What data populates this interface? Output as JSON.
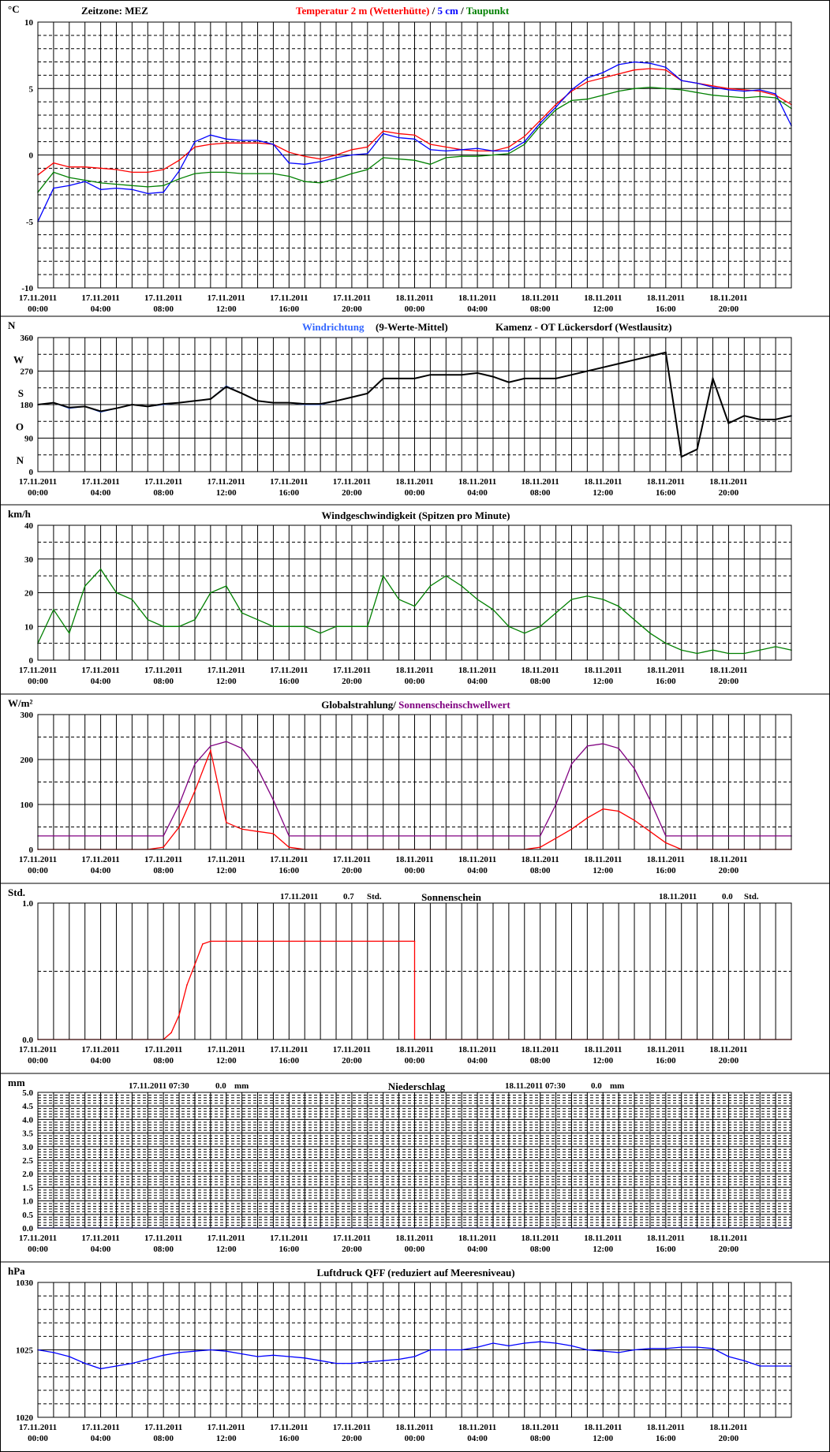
{
  "x_tick_dates": [
    "17.11.2011",
    "17.11.2011",
    "17.11.2011",
    "17.11.2011",
    "17.11.2011",
    "17.11.2011",
    "18.11.2011",
    "18.11.2011",
    "18.11.2011",
    "18.11.2011",
    "18.11.2011",
    "18.11.2011"
  ],
  "x_tick_times": [
    "00:00",
    "04:00",
    "08:00",
    "12:00",
    "16:00",
    "20:00",
    "00:00",
    "04:00",
    "08:00",
    "12:00",
    "16:00",
    "20:00"
  ],
  "panels": {
    "temperature": {
      "unit": "°C",
      "zone": "Zeitzone: MEZ",
      "title_parts": [
        {
          "text": "Temperatur 2 m (Wetterhütte)",
          "color": "#ff0000"
        },
        {
          "text": " / ",
          "color": "#000000"
        },
        {
          "text": "5 cm",
          "color": "#0000ff"
        },
        {
          "text": " / ",
          "color": "#000000"
        },
        {
          "text": "Taupunkt",
          "color": "#008000"
        }
      ],
      "y_ticks": [
        "10",
        "5",
        "0",
        "-5",
        "-10"
      ]
    },
    "wind_direction": {
      "unit": "N",
      "title_left": "Windrichtung",
      "title_left_color": "#3366ff",
      "title_mid": "(9-Werte-Mittel)",
      "title_right": "Kamenz - OT Lückersdorf (Westlausitz)",
      "y_ticks": [
        "360",
        "270",
        "180",
        "90",
        "0"
      ],
      "compass": [
        "N",
        "W",
        "S",
        "O",
        "N"
      ]
    },
    "wind_speed": {
      "unit": "km/h",
      "title": "Windgeschwindigkeit (Spitzen pro Minute)",
      "y_ticks": [
        "40",
        "30",
        "20",
        "10",
        "0"
      ]
    },
    "radiation": {
      "unit": "W/m²",
      "title_parts": [
        {
          "text": "Globalstrahlung/ ",
          "color": "#000000"
        },
        {
          "text": "Sonnenscheinschwellwert",
          "color": "#800080"
        }
      ],
      "y_ticks": [
        "300",
        "200",
        "100",
        "0"
      ]
    },
    "sunshine": {
      "unit": "Std.",
      "title": "Sonnenschein",
      "day1_date": "17.11.2011",
      "day1_value": "0.7",
      "day1_unit": "Std.",
      "day2_date": "18.11.2011",
      "day2_value": "0.0",
      "day2_unit": "Std.",
      "y_ticks": [
        "1.0",
        "0.0"
      ]
    },
    "precipitation": {
      "unit": "mm",
      "title": "Niederschlag",
      "day1_date": "17.11.2011 07:30",
      "day1_value": "0.0",
      "day1_unit": "mm",
      "day2_date": "18.11.2011 07:30",
      "day2_value": "0.0",
      "day2_unit": "mm",
      "y_ticks": [
        "5.0",
        "4.5",
        "4.0",
        "3.5",
        "3.0",
        "2.5",
        "2.0",
        "1.5",
        "1.0",
        "0.5",
        "0.0"
      ]
    },
    "pressure": {
      "unit": "hPa",
      "title": "Luftdruck QFF (reduziert auf Meeresniveau)",
      "y_ticks": [
        "1030",
        "1025",
        "1020"
      ]
    }
  },
  "chart_data": [
    {
      "type": "line",
      "xlabel": "",
      "ylabel": "°C",
      "ylim": [
        -10,
        10
      ],
      "x_hours": [
        0,
        1,
        2,
        3,
        4,
        5,
        6,
        7,
        8,
        9,
        10,
        11,
        12,
        13,
        14,
        15,
        16,
        17,
        18,
        19,
        20,
        21,
        22,
        23,
        24,
        25,
        26,
        27,
        28,
        29,
        30,
        31,
        32,
        33,
        34,
        35,
        36,
        37,
        38,
        39,
        40,
        41,
        42,
        43,
        44,
        45,
        46,
        47,
        48
      ],
      "series": [
        {
          "name": "Temperatur 2 m (Wetterhütte)",
          "color": "#ff0000",
          "values": [
            -1.5,
            -0.6,
            -0.9,
            -0.9,
            -1.0,
            -1.1,
            -1.3,
            -1.3,
            -1.1,
            -0.4,
            0.6,
            0.8,
            0.9,
            0.9,
            0.9,
            0.8,
            0.2,
            -0.1,
            -0.3,
            0.0,
            0.4,
            0.6,
            1.8,
            1.6,
            1.5,
            0.8,
            0.6,
            0.4,
            0.3,
            0.3,
            0.6,
            1.4,
            2.6,
            3.8,
            4.8,
            5.5,
            5.8,
            6.1,
            6.4,
            6.5,
            6.4,
            5.6,
            5.4,
            5.2,
            5.0,
            4.9,
            4.8,
            4.5,
            3.8
          ]
        },
        {
          "name": "5 cm",
          "color": "#0000ff",
          "values": [
            -5.0,
            -2.5,
            -2.3,
            -2.0,
            -2.6,
            -2.5,
            -2.6,
            -2.9,
            -2.8,
            -1.2,
            1.0,
            1.5,
            1.2,
            1.1,
            1.1,
            0.8,
            -0.6,
            -0.7,
            -0.5,
            -0.2,
            0.0,
            0.1,
            1.6,
            1.3,
            1.2,
            0.4,
            0.3,
            0.4,
            0.5,
            0.3,
            0.3,
            1.0,
            2.4,
            3.6,
            4.9,
            5.8,
            6.2,
            6.8,
            7.0,
            6.9,
            6.6,
            5.6,
            5.4,
            5.1,
            4.9,
            4.8,
            4.9,
            4.6,
            2.2
          ]
        },
        {
          "name": "Taupunkt",
          "color": "#008000",
          "values": [
            -2.8,
            -1.3,
            -1.7,
            -1.9,
            -2.1,
            -2.2,
            -2.3,
            -2.4,
            -2.3,
            -1.8,
            -1.4,
            -1.3,
            -1.3,
            -1.4,
            -1.4,
            -1.4,
            -1.6,
            -2.0,
            -2.1,
            -1.8,
            -1.4,
            -1.1,
            -0.2,
            -0.3,
            -0.4,
            -0.7,
            -0.2,
            -0.1,
            -0.1,
            0.0,
            0.1,
            0.8,
            2.2,
            3.4,
            4.1,
            4.2,
            4.5,
            4.8,
            5.0,
            5.1,
            5.0,
            4.9,
            4.7,
            4.5,
            4.4,
            4.3,
            4.4,
            4.3,
            3.5
          ]
        }
      ]
    },
    {
      "type": "line",
      "xlabel": "",
      "ylabel": "N",
      "ylim": [
        0,
        360
      ],
      "x_hours": [
        0,
        1,
        2,
        3,
        4,
        5,
        6,
        7,
        8,
        9,
        10,
        11,
        12,
        13,
        14,
        15,
        16,
        17,
        18,
        19,
        20,
        21,
        22,
        23,
        24,
        25,
        26,
        27,
        28,
        29,
        30,
        31,
        32,
        33,
        34,
        35,
        36,
        37,
        38,
        39,
        40,
        41,
        42,
        43,
        44,
        45,
        46,
        47,
        48
      ],
      "series": [
        {
          "name": "Windrichtung",
          "color": "#3366ff",
          "values": [
            180,
            185,
            170,
            175,
            160,
            170,
            180,
            175,
            180,
            185,
            190,
            195,
            230,
            210,
            190,
            185,
            185,
            180,
            180,
            190,
            200,
            210,
            250,
            250,
            250,
            260,
            260,
            260,
            265,
            255,
            240,
            250,
            250,
            250,
            260,
            270,
            280,
            290,
            300,
            310,
            320,
            40,
            60,
            250,
            130,
            150,
            140,
            140,
            150
          ]
        },
        {
          "name": "9-Werte-Mittel",
          "color": "#000000",
          "values": [
            180,
            185,
            172,
            175,
            162,
            170,
            180,
            175,
            182,
            185,
            190,
            195,
            228,
            210,
            190,
            185,
            185,
            182,
            182,
            190,
            200,
            210,
            250,
            250,
            250,
            260,
            260,
            260,
            265,
            255,
            240,
            250,
            250,
            250,
            260,
            270,
            280,
            290,
            300,
            310,
            320,
            40,
            60,
            250,
            130,
            150,
            140,
            140,
            150
          ]
        }
      ]
    },
    {
      "type": "line",
      "xlabel": "",
      "ylabel": "km/h",
      "ylim": [
        0,
        40
      ],
      "x_hours": [
        0,
        1,
        2,
        3,
        4,
        5,
        6,
        7,
        8,
        9,
        10,
        11,
        12,
        13,
        14,
        15,
        16,
        17,
        18,
        19,
        20,
        21,
        22,
        23,
        24,
        25,
        26,
        27,
        28,
        29,
        30,
        31,
        32,
        33,
        34,
        35,
        36,
        37,
        38,
        39,
        40,
        41,
        42,
        43,
        44,
        45,
        46,
        47,
        48
      ],
      "series": [
        {
          "name": "Windgeschwindigkeit",
          "color": "#008000",
          "values": [
            5,
            15,
            8,
            22,
            27,
            20,
            18,
            12,
            10,
            10,
            12,
            20,
            22,
            14,
            12,
            10,
            10,
            10,
            8,
            10,
            10,
            10,
            25,
            18,
            16,
            22,
            25,
            22,
            18,
            15,
            10,
            8,
            10,
            14,
            18,
            19,
            18,
            16,
            12,
            8,
            5,
            3,
            2,
            3,
            2,
            2,
            3,
            4,
            3
          ]
        }
      ]
    },
    {
      "type": "line",
      "xlabel": "",
      "ylabel": "W/m²",
      "ylim": [
        0,
        300
      ],
      "x_hours": [
        0,
        1,
        2,
        3,
        4,
        5,
        6,
        7,
        8,
        9,
        10,
        11,
        12,
        13,
        14,
        15,
        16,
        17,
        18,
        19,
        20,
        21,
        22,
        23,
        24,
        25,
        26,
        27,
        28,
        29,
        30,
        31,
        32,
        33,
        34,
        35,
        36,
        37,
        38,
        39,
        40,
        41,
        42,
        43,
        44,
        45,
        46,
        47,
        48
      ],
      "series": [
        {
          "name": "Globalstrahlung",
          "color": "#ff0000",
          "values": [
            0,
            0,
            0,
            0,
            0,
            0,
            0,
            0,
            5,
            50,
            130,
            220,
            60,
            45,
            40,
            35,
            5,
            0,
            0,
            0,
            0,
            0,
            0,
            0,
            0,
            0,
            0,
            0,
            0,
            0,
            0,
            0,
            5,
            25,
            45,
            70,
            90,
            85,
            65,
            40,
            15,
            0,
            0,
            0,
            0,
            0,
            0,
            0,
            0
          ]
        },
        {
          "name": "Sonnenscheinschwellwert",
          "color": "#800080",
          "values": [
            30,
            30,
            30,
            30,
            30,
            30,
            30,
            30,
            30,
            100,
            190,
            230,
            240,
            225,
            180,
            110,
            30,
            30,
            30,
            30,
            30,
            30,
            30,
            30,
            30,
            30,
            30,
            30,
            30,
            30,
            30,
            30,
            30,
            100,
            190,
            230,
            235,
            225,
            180,
            110,
            30,
            30,
            30,
            30,
            30,
            30,
            30,
            30,
            30
          ]
        }
      ]
    },
    {
      "type": "line",
      "xlabel": "",
      "ylabel": "Std.",
      "ylim": [
        0,
        1
      ],
      "x_hours": [
        0,
        8,
        8.5,
        9,
        9.5,
        10,
        10.5,
        11,
        24,
        24.001,
        48
      ],
      "series": [
        {
          "name": "Sonnenschein",
          "color": "#ff0000",
          "values": [
            0,
            0,
            0.05,
            0.18,
            0.4,
            0.55,
            0.7,
            0.72,
            0.72,
            0,
            0
          ]
        }
      ]
    },
    {
      "type": "line",
      "xlabel": "",
      "ylabel": "mm",
      "ylim": [
        0,
        5
      ],
      "x_hours": [
        0,
        48
      ],
      "series": [
        {
          "name": "Niederschlag",
          "color": "#0000ff",
          "values": [
            0.0,
            0.0
          ]
        }
      ]
    },
    {
      "type": "line",
      "xlabel": "",
      "ylabel": "hPa",
      "ylim": [
        1020,
        1030
      ],
      "x_hours": [
        0,
        1,
        2,
        3,
        4,
        5,
        6,
        7,
        8,
        9,
        10,
        11,
        12,
        13,
        14,
        15,
        16,
        17,
        18,
        19,
        20,
        21,
        22,
        23,
        24,
        25,
        26,
        27,
        28,
        29,
        30,
        31,
        32,
        33,
        34,
        35,
        36,
        37,
        38,
        39,
        40,
        41,
        42,
        43,
        44,
        45,
        46,
        47,
        48
      ],
      "series": [
        {
          "name": "Luftdruck QFF",
          "color": "#0000ff",
          "values": [
            1025,
            1024.8,
            1024.5,
            1024,
            1023.6,
            1023.8,
            1024,
            1024.3,
            1024.6,
            1024.8,
            1024.9,
            1025,
            1024.9,
            1024.7,
            1024.5,
            1024.6,
            1024.5,
            1024.4,
            1024.2,
            1024.0,
            1024.0,
            1024.1,
            1024.2,
            1024.3,
            1024.5,
            1025,
            1025,
            1025,
            1025.2,
            1025.5,
            1025.3,
            1025.5,
            1025.6,
            1025.5,
            1025.3,
            1025.0,
            1024.9,
            1024.8,
            1025.0,
            1025.1,
            1025.1,
            1025.2,
            1025.2,
            1025.1,
            1024.5,
            1024.2,
            1023.8,
            1023.8,
            1023.8
          ]
        }
      ]
    }
  ]
}
